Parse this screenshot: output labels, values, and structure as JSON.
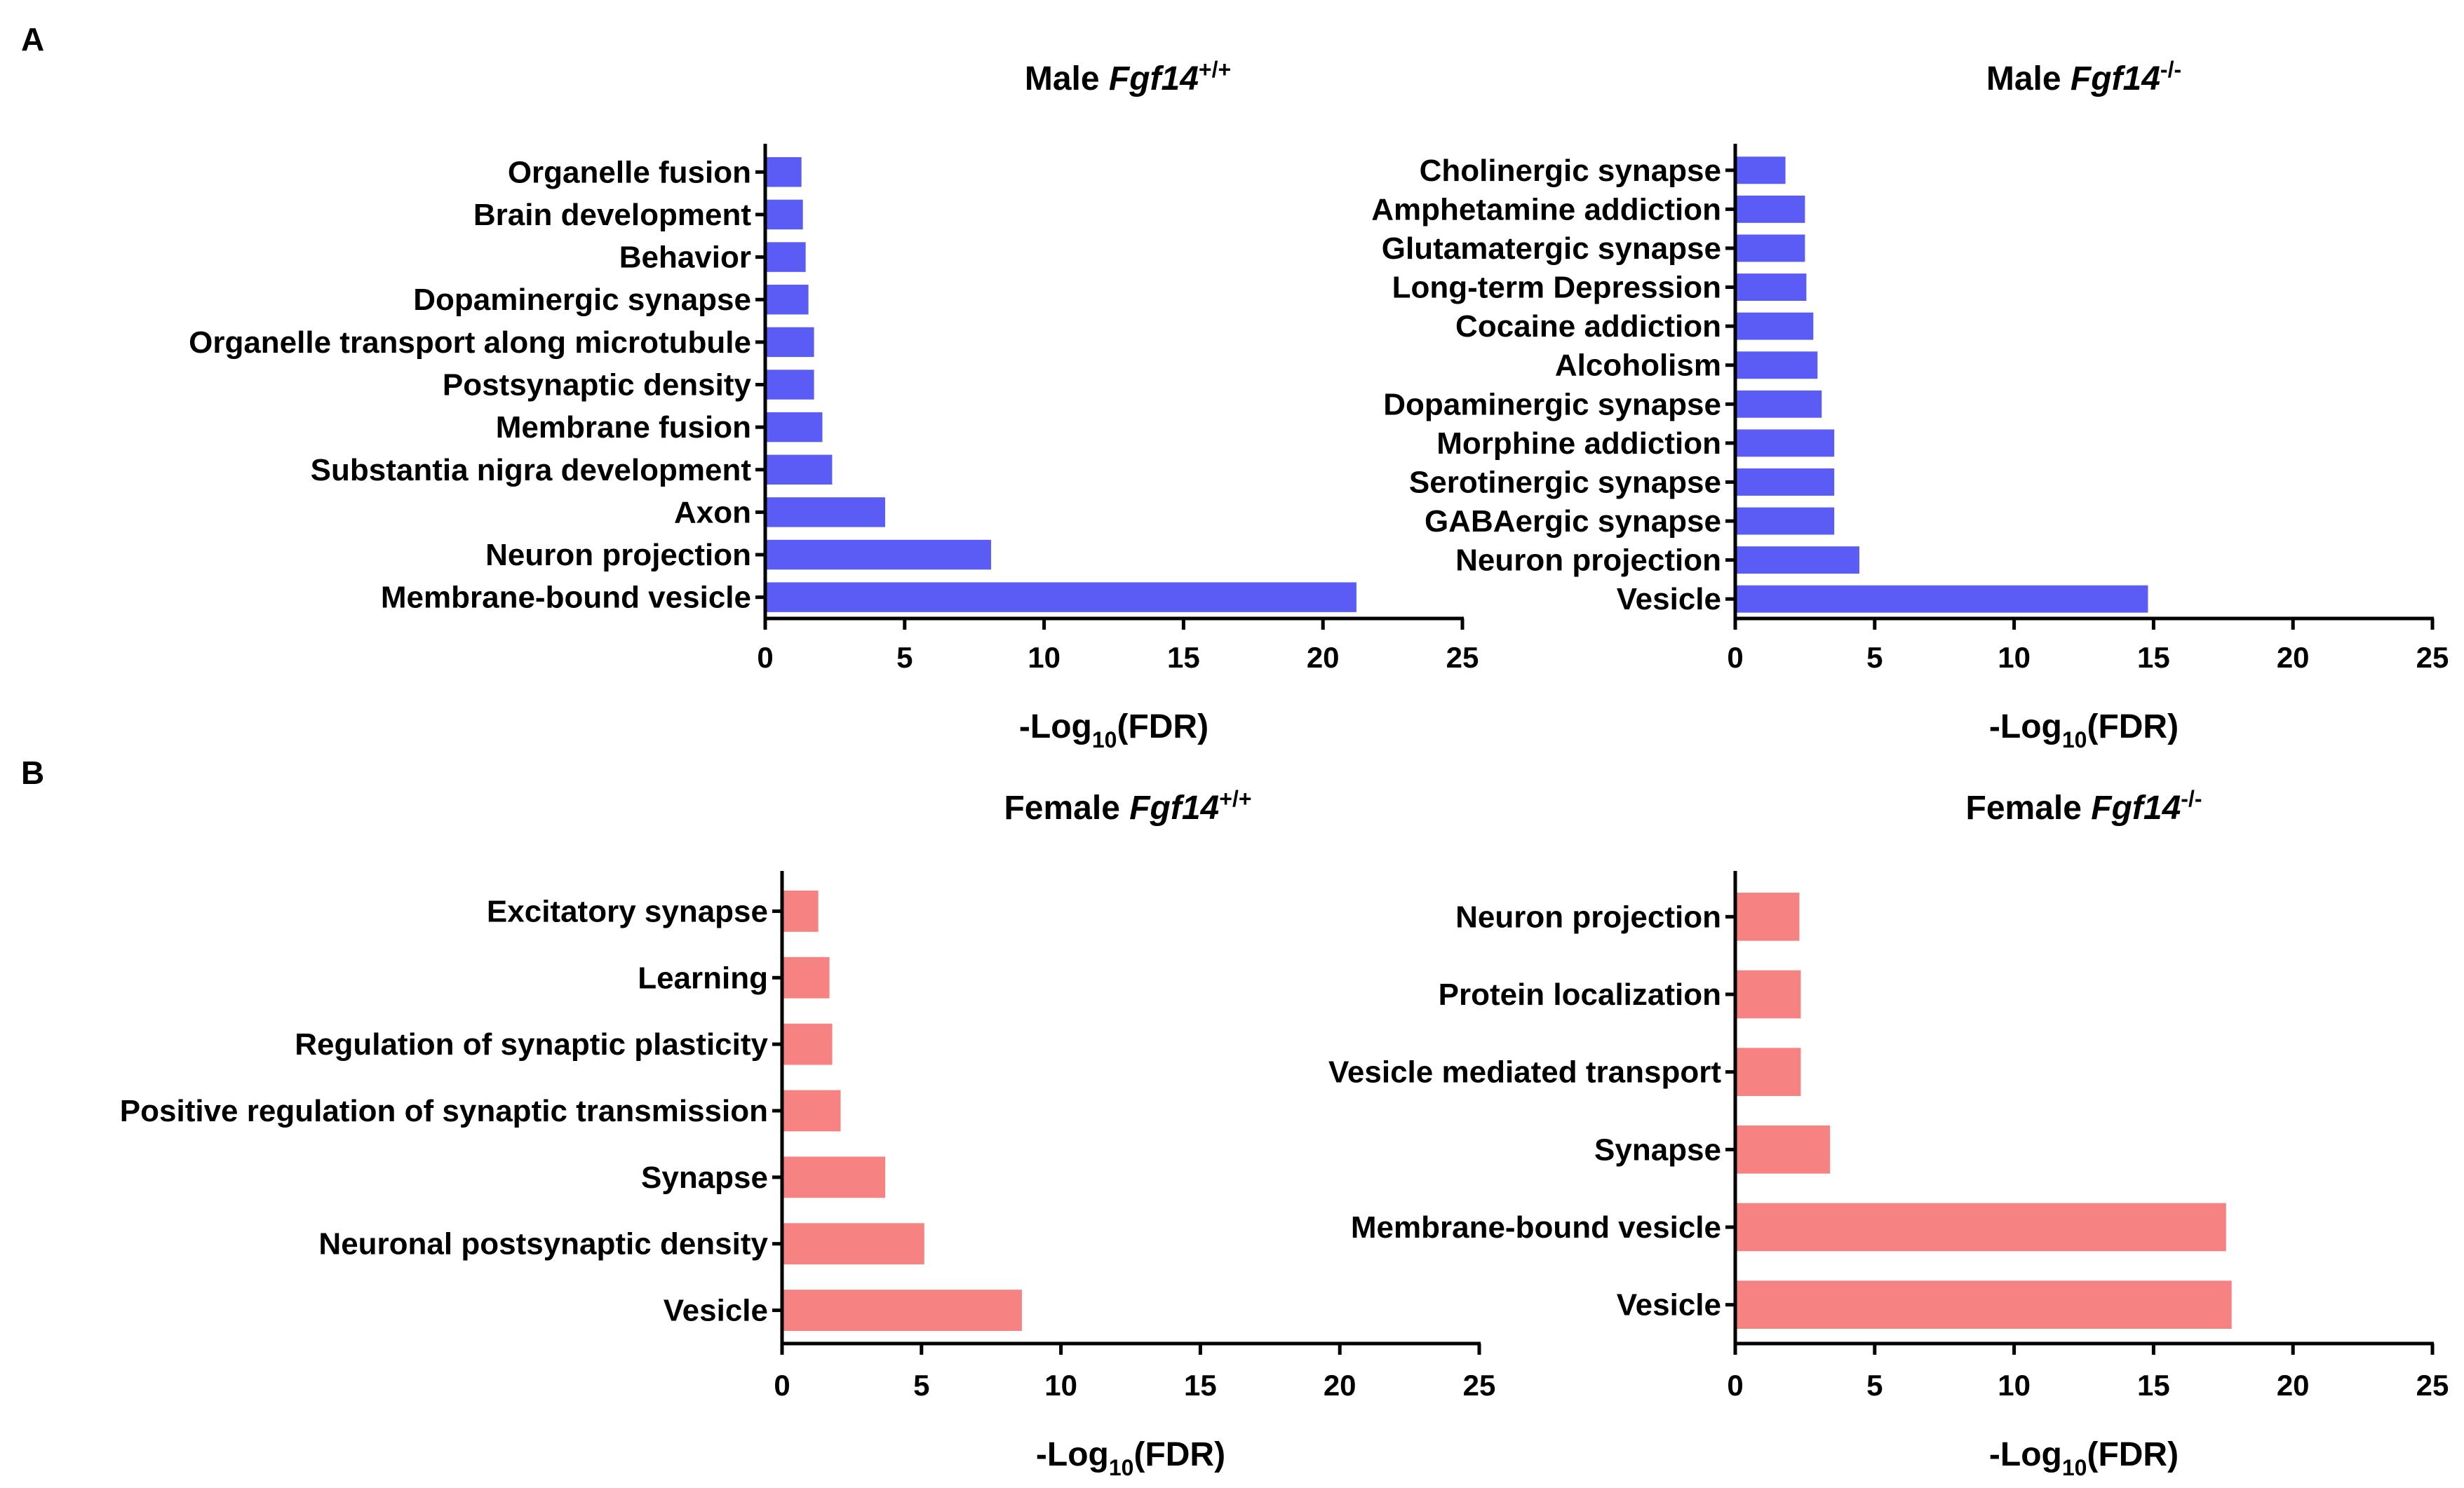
{
  "panel_labels": [
    "A",
    "B"
  ],
  "colors": {
    "male_bar": "#5a5cf5",
    "female_bar": "#f68282",
    "axis": "#000000"
  },
  "chart_data": [
    {
      "id": "male-wt",
      "panel": "A",
      "type": "bar",
      "orientation": "horizontal",
      "title": {
        "prefix": "Male ",
        "gene": "Fgf14",
        "sup": "+/+"
      },
      "xlabel": {
        "pre": "-Log",
        "sub": "10",
        "post": "(FDR)"
      },
      "xlim": [
        0,
        25
      ],
      "xticks": [
        0,
        5,
        10,
        15,
        20,
        25
      ],
      "categories": [
        "Organelle fusion",
        "Brain development",
        "Behavior",
        "Dopaminergic synapse",
        "Organelle transport along microtubule",
        "Postsynaptic density",
        "Membrane fusion",
        "Substantia nigra development",
        "Axon",
        "Neuron projection",
        "Membrane-bound vesicle"
      ],
      "values": [
        1.3,
        1.35,
        1.45,
        1.55,
        1.75,
        1.75,
        2.05,
        2.4,
        4.3,
        8.1,
        21.2
      ],
      "color_key": "male_bar"
    },
    {
      "id": "male-ko",
      "panel": "A",
      "type": "bar",
      "orientation": "horizontal",
      "title": {
        "prefix": "Male ",
        "gene": "Fgf14",
        "sup": "-/-"
      },
      "xlabel": {
        "pre": "-Log",
        "sub": "10",
        "post": "(FDR)"
      },
      "xlim": [
        0,
        25
      ],
      "xticks": [
        0,
        5,
        10,
        15,
        20,
        25
      ],
      "categories": [
        "Cholinergic synapse",
        "Amphetamine addiction",
        "Glutamatergic synapse",
        "Long-term Depression",
        "Cocaine addiction",
        "Alcoholism",
        "Dopaminergic synapse",
        "Morphine addiction",
        "Serotinergic synapse",
        "GABAergic synapse",
        "Neuron projection",
        "Vesicle"
      ],
      "values": [
        1.8,
        2.5,
        2.5,
        2.55,
        2.8,
        2.95,
        3.1,
        3.55,
        3.55,
        3.55,
        4.45,
        14.8
      ],
      "color_key": "male_bar"
    },
    {
      "id": "female-wt",
      "panel": "B",
      "type": "bar",
      "orientation": "horizontal",
      "title": {
        "prefix": "Female ",
        "gene": "Fgf14",
        "sup": "+/+"
      },
      "xlabel": {
        "pre": "-Log",
        "sub": "10",
        "post": "(FDR)"
      },
      "xlim": [
        0,
        25
      ],
      "xticks": [
        0,
        5,
        10,
        15,
        20,
        25
      ],
      "categories": [
        "Excitatory synapse",
        "Learning",
        "Regulation of synaptic plasticity",
        "Positive regulation of synaptic transmission",
        "Synapse",
        "Neuronal postsynaptic density",
        "Vesicle"
      ],
      "values": [
        1.3,
        1.7,
        1.8,
        2.1,
        3.7,
        5.1,
        8.6
      ],
      "color_key": "female_bar"
    },
    {
      "id": "female-ko",
      "panel": "B",
      "type": "bar",
      "orientation": "horizontal",
      "title": {
        "prefix": "Female ",
        "gene": "Fgf14",
        "sup": "-/-"
      },
      "xlabel": {
        "pre": "-Log",
        "sub": "10",
        "post": "(FDR)"
      },
      "xlim": [
        0,
        25
      ],
      "xticks": [
        0,
        5,
        10,
        15,
        20,
        25
      ],
      "categories": [
        "Neuron projection",
        "Protein localization",
        "Vesicle mediated transport",
        "Synapse",
        "Membrane-bound vesicle",
        "Vesicle"
      ],
      "values": [
        2.3,
        2.35,
        2.35,
        3.4,
        17.6,
        17.8
      ],
      "color_key": "female_bar"
    }
  ]
}
